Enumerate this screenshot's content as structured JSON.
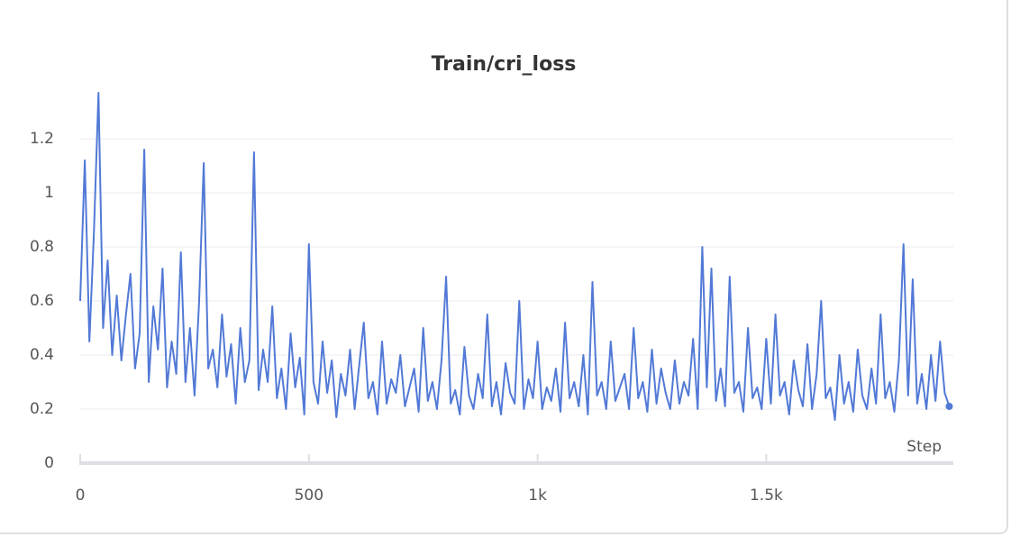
{
  "chart_data": {
    "type": "line",
    "title": "Train/cri_loss",
    "x_label": "Step",
    "x": [
      0,
      10,
      20,
      30,
      40,
      50,
      60,
      70,
      80,
      90,
      100,
      110,
      120,
      130,
      140,
      150,
      160,
      170,
      180,
      190,
      200,
      210,
      220,
      230,
      240,
      250,
      260,
      270,
      280,
      290,
      300,
      310,
      320,
      330,
      340,
      350,
      360,
      370,
      380,
      390,
      400,
      410,
      420,
      430,
      440,
      450,
      460,
      470,
      480,
      490,
      500,
      510,
      520,
      530,
      540,
      550,
      560,
      570,
      580,
      590,
      600,
      610,
      620,
      630,
      640,
      650,
      660,
      670,
      680,
      690,
      700,
      710,
      720,
      730,
      740,
      750,
      760,
      770,
      780,
      790,
      800,
      810,
      820,
      830,
      840,
      850,
      860,
      870,
      880,
      890,
      900,
      910,
      920,
      930,
      940,
      950,
      960,
      970,
      980,
      990,
      1000,
      1010,
      1020,
      1030,
      1040,
      1050,
      1060,
      1070,
      1080,
      1090,
      1100,
      1110,
      1120,
      1130,
      1140,
      1150,
      1160,
      1170,
      1180,
      1190,
      1200,
      1210,
      1220,
      1230,
      1240,
      1250,
      1260,
      1270,
      1280,
      1290,
      1300,
      1310,
      1320,
      1330,
      1340,
      1350,
      1360,
      1370,
      1380,
      1390,
      1400,
      1410,
      1420,
      1430,
      1440,
      1450,
      1460,
      1470,
      1480,
      1490,
      1500,
      1510,
      1520,
      1530,
      1540,
      1550,
      1560,
      1570,
      1580,
      1590,
      1600,
      1610,
      1620,
      1630,
      1640,
      1650,
      1660,
      1670,
      1680,
      1690,
      1700,
      1710,
      1720,
      1730,
      1740,
      1750,
      1760,
      1770,
      1780,
      1790,
      1800,
      1810,
      1820,
      1830,
      1840,
      1850,
      1860,
      1870,
      1880,
      1890,
      1900
    ],
    "series": [
      {
        "color": "#5279d6",
        "values": [
          0.6,
          1.12,
          0.45,
          0.85,
          1.37,
          0.5,
          0.75,
          0.4,
          0.62,
          0.38,
          0.55,
          0.7,
          0.35,
          0.48,
          1.16,
          0.3,
          0.58,
          0.42,
          0.72,
          0.28,
          0.45,
          0.33,
          0.78,
          0.3,
          0.5,
          0.25,
          0.6,
          1.11,
          0.35,
          0.42,
          0.28,
          0.55,
          0.32,
          0.44,
          0.22,
          0.5,
          0.3,
          0.38,
          1.15,
          0.27,
          0.42,
          0.3,
          0.58,
          0.24,
          0.35,
          0.2,
          0.48,
          0.28,
          0.39,
          0.18,
          0.81,
          0.3,
          0.22,
          0.45,
          0.26,
          0.38,
          0.17,
          0.33,
          0.25,
          0.42,
          0.2,
          0.36,
          0.52,
          0.24,
          0.3,
          0.18,
          0.45,
          0.22,
          0.31,
          0.26,
          0.4,
          0.21,
          0.28,
          0.35,
          0.19,
          0.5,
          0.23,
          0.3,
          0.2,
          0.38,
          0.69,
          0.22,
          0.27,
          0.18,
          0.43,
          0.25,
          0.2,
          0.33,
          0.24,
          0.55,
          0.21,
          0.3,
          0.18,
          0.37,
          0.26,
          0.22,
          0.6,
          0.2,
          0.31,
          0.24,
          0.45,
          0.2,
          0.28,
          0.23,
          0.35,
          0.19,
          0.52,
          0.24,
          0.3,
          0.21,
          0.4,
          0.18,
          0.67,
          0.25,
          0.3,
          0.2,
          0.45,
          0.23,
          0.28,
          0.33,
          0.2,
          0.5,
          0.24,
          0.3,
          0.19,
          0.42,
          0.22,
          0.35,
          0.26,
          0.2,
          0.38,
          0.22,
          0.3,
          0.25,
          0.46,
          0.2,
          0.8,
          0.28,
          0.72,
          0.23,
          0.35,
          0.21,
          0.69,
          0.26,
          0.3,
          0.19,
          0.5,
          0.24,
          0.28,
          0.2,
          0.46,
          0.22,
          0.55,
          0.25,
          0.3,
          0.18,
          0.38,
          0.27,
          0.21,
          0.44,
          0.2,
          0.33,
          0.6,
          0.24,
          0.28,
          0.16,
          0.4,
          0.22,
          0.3,
          0.19,
          0.42,
          0.25,
          0.2,
          0.35,
          0.22,
          0.55,
          0.24,
          0.3,
          0.19,
          0.38,
          0.81,
          0.25,
          0.68,
          0.22,
          0.33,
          0.2,
          0.4,
          0.23,
          0.45,
          0.26,
          0.21
        ]
      }
    ],
    "xlim": [
      0,
      1905
    ],
    "ylim": [
      0,
      1.38
    ],
    "xticks": [
      0,
      500,
      {
        "value": 1000,
        "label": "1k"
      },
      {
        "value": 1500,
        "label": "1.5k"
      }
    ],
    "yticks": [
      0,
      0.2,
      0.4,
      0.6,
      0.8,
      1,
      1.2
    ],
    "grid": true
  }
}
